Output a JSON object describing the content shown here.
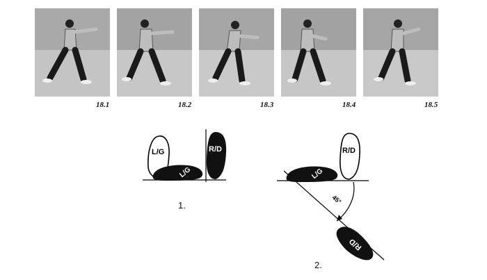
{
  "photos": [
    {
      "caption": "18.1"
    },
    {
      "caption": "18.2"
    },
    {
      "caption": "18.3"
    },
    {
      "caption": "18.4"
    },
    {
      "caption": "18.5"
    }
  ],
  "diagram": {
    "fig1": {
      "label": "1.",
      "left_foot_upright": "L/G",
      "left_foot_flat": "L/G",
      "right_foot_upright": "R/D"
    },
    "fig2": {
      "label": "2.",
      "left_foot_flat": "L/G",
      "right_foot_upright": "R/D",
      "right_foot_turned": "R/D",
      "angle_label": "45°"
    }
  }
}
